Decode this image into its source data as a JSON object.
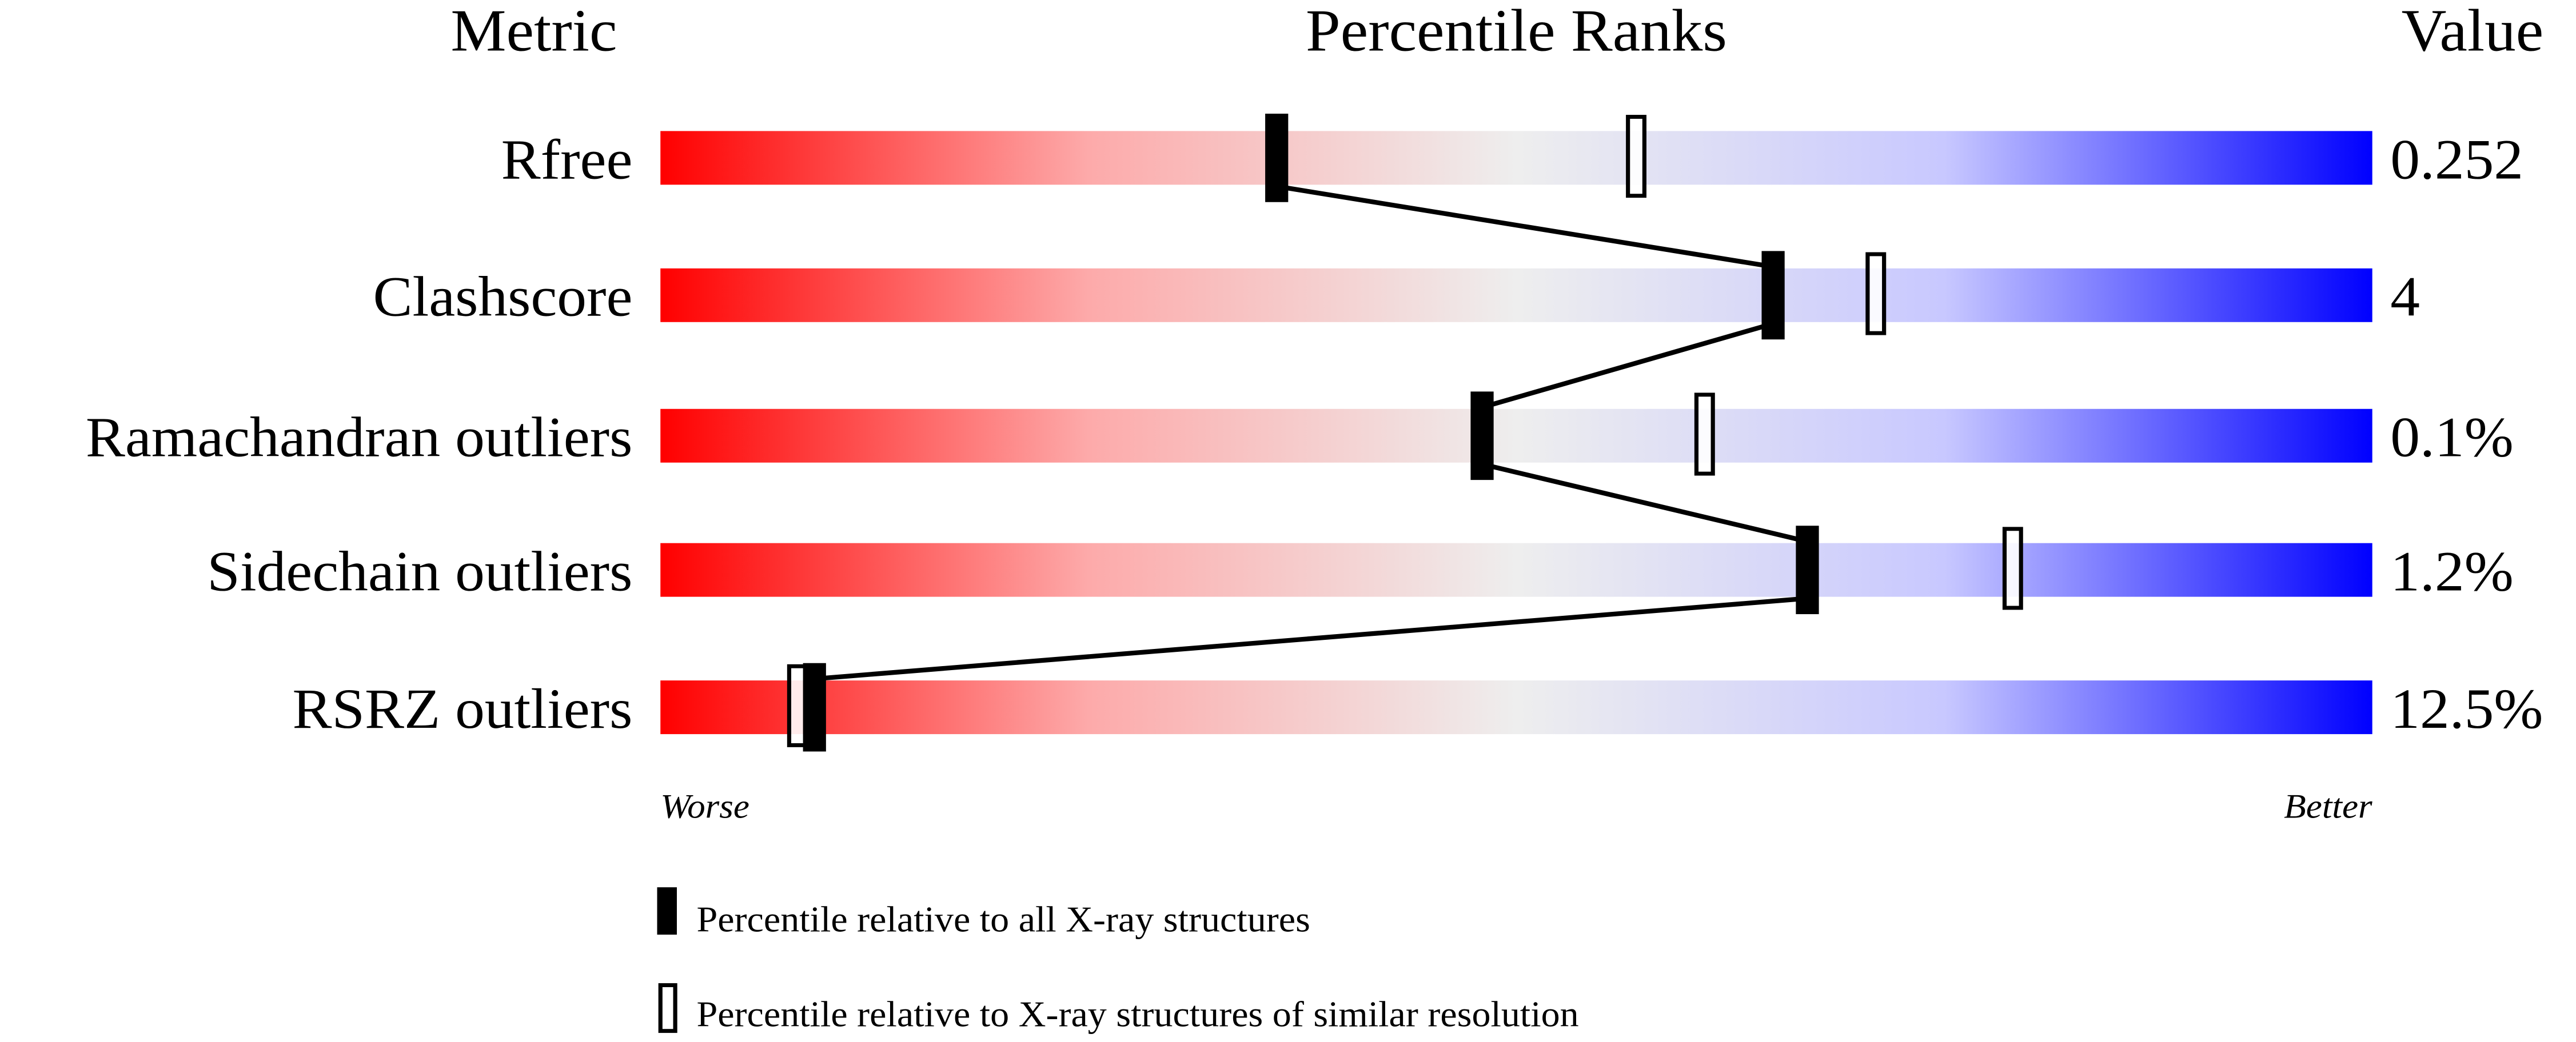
{
  "chart_data": {
    "type": "percentile-slider",
    "headers": {
      "metric": "Metric",
      "ranks": "Percentile Ranks",
      "value": "Value"
    },
    "xlim": [
      0,
      100
    ],
    "scale_labels": {
      "left": "Worse",
      "right": "Better"
    },
    "gradient_colors": [
      "#ff0000",
      "#eeeeee",
      "#0000ff"
    ],
    "rows": [
      {
        "metric": "Rfree",
        "value": "0.252",
        "percentile_all": 36,
        "percentile_similar": 57
      },
      {
        "metric": "Clashscore",
        "value": "4",
        "percentile_all": 65,
        "percentile_similar": 71
      },
      {
        "metric": "Ramachandran outliers",
        "value": "0.1%",
        "percentile_all": 48,
        "percentile_similar": 61
      },
      {
        "metric": "Sidechain outliers",
        "value": "1.2%",
        "percentile_all": 67,
        "percentile_similar": 79
      },
      {
        "metric": "RSRZ outliers",
        "value": "12.5%",
        "percentile_all": 9,
        "percentile_similar": 8
      }
    ],
    "legend": [
      {
        "marker": "filled",
        "label": "Percentile relative to all X-ray structures"
      },
      {
        "marker": "open",
        "label": "Percentile relative to X-ray structures of similar resolution"
      }
    ]
  }
}
